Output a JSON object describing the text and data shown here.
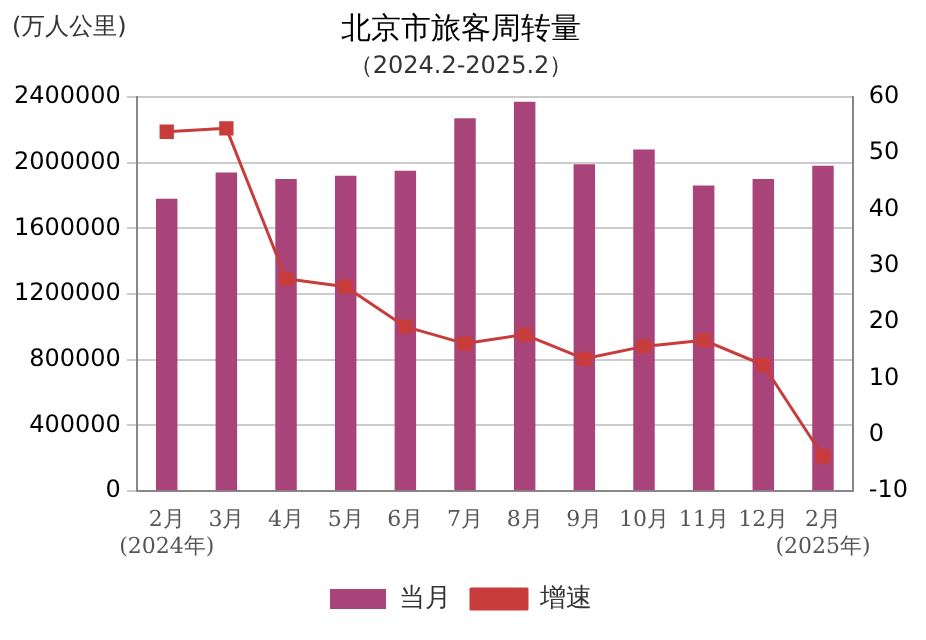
{
  "chart_data": {
    "type": "bar",
    "title": "北京市旅客周转量",
    "subtitle": "（2024.2-2025.2）",
    "ylabel": "(万人公里)",
    "categories": [
      "2月\n(2024年)",
      "3月",
      "4月",
      "5月",
      "6月",
      "7月",
      "8月",
      "9月",
      "10月",
      "11月",
      "12月",
      "2月\n(2025年)"
    ],
    "series": [
      {
        "name": "当月",
        "color": "#a8447a",
        "values": [
          1780000,
          1940000,
          1900000,
          1920000,
          1950000,
          2270000,
          2370000,
          1990000,
          2080000,
          1860000,
          1900000,
          1980000
        ]
      },
      {
        "name": "增速",
        "type": "line",
        "axis": "y2",
        "color": "#c83c3c",
        "marker": "square",
        "values": [
          53.8,
          54.4,
          27.7,
          26.3,
          19.2,
          16.2,
          17.8,
          13.5,
          15.7,
          16.8,
          12.4,
          -3.8
        ]
      }
    ],
    "ylim": [
      0,
      2400000
    ],
    "yticks": [
      0,
      400000,
      800000,
      1200000,
      1600000,
      2000000,
      2400000
    ],
    "y2lim": [
      -10,
      60
    ],
    "y2ticks": [
      -10,
      0,
      10,
      20,
      30,
      40,
      50,
      60
    ],
    "grid": "y",
    "legend": "bottom"
  }
}
